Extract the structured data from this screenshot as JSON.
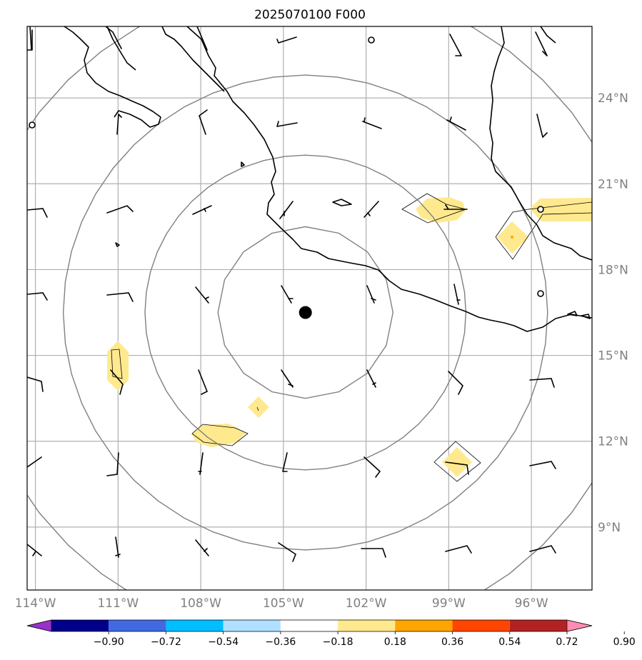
{
  "title": "2025070100 F000",
  "map": {
    "lon_range": [
      -114.3,
      -93.8
    ],
    "lat_range": [
      6.8,
      26.5
    ],
    "lon_ticks": [
      {
        "value": -114,
        "label": "114°W"
      },
      {
        "value": -111,
        "label": "111°W"
      },
      {
        "value": -108,
        "label": "108°W"
      },
      {
        "value": -105,
        "label": "105°W"
      },
      {
        "value": -102,
        "label": "102°W"
      },
      {
        "value": -99,
        "label": "99°W"
      },
      {
        "value": -96,
        "label": "96°W"
      }
    ],
    "lat_ticks": [
      {
        "value": 24,
        "label": "24°N"
      },
      {
        "value": 21,
        "label": "21°N"
      },
      {
        "value": 18,
        "label": "18°N"
      },
      {
        "value": 15,
        "label": "15°N"
      },
      {
        "value": 12,
        "label": "12°N"
      },
      {
        "value": 9,
        "label": "9°N"
      }
    ],
    "storm_center": {
      "lon": -104.2,
      "lat": 16.5
    },
    "range_rings_deg": [
      3,
      5.5,
      8.3,
      11.5
    ],
    "colors": {
      "grid": "#b0b0b0",
      "rings": "#808080",
      "coast": "#000000",
      "shade_low": "#ffe98f",
      "shade_high": "#ffa500"
    }
  },
  "colorbar": {
    "ticks": [
      "−0.90",
      "−0.72",
      "−0.54",
      "−0.36",
      "−0.18",
      "0.18",
      "0.36",
      "0.54",
      "0.72",
      "0.90"
    ],
    "colors": [
      "#9932cc",
      "#00008b",
      "#4169e1",
      "#00bfff",
      "#b0e0ff",
      "#ffffff",
      "#ffe98f",
      "#ffa500",
      "#ff4500",
      "#b22222",
      "#ff8cb4"
    ]
  }
}
